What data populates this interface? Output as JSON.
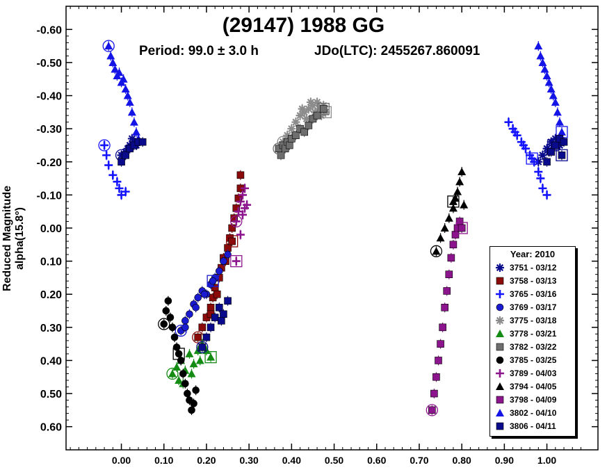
{
  "chart_data": {
    "type": "scatter",
    "title": "(29147) 1988 GG",
    "period_text": "Period: 99.0 ± 3.0 h",
    "epoch_text": "JDo(LTC): 2455267.860091",
    "xlabel": "",
    "ylabel": "Reduced Magnitude alpha(15.8°)",
    "xlim": [
      -0.13,
      1.12
    ],
    "ylim": [
      -0.67,
      0.67
    ],
    "y_inverted": true,
    "x_ticks": [
      "0.00",
      "0.10",
      "0.20",
      "0.30",
      "0.40",
      "0.50",
      "0.60",
      "0.70",
      "0.80",
      "0.90",
      "1.00"
    ],
    "y_ticks": [
      "-0.60",
      "-0.50",
      "-0.40",
      "-0.30",
      "-0.20",
      "-0.10",
      "0.00",
      "0.10",
      "0.20",
      "0.30",
      "0.40",
      "0.50",
      "0.60"
    ],
    "legend_title": "Year: 2010",
    "legend_position": "bottom-right",
    "series": [
      {
        "name": "3751 - 03/12",
        "color": "#0a0a8c",
        "marker": "asterisk",
        "points": [
          [
            0.0,
            -0.22
          ],
          [
            0.01,
            -0.23
          ],
          [
            0.02,
            -0.25
          ],
          [
            0.025,
            -0.27
          ],
          [
            0.03,
            -0.26
          ],
          [
            0.015,
            -0.24
          ],
          [
            0.005,
            -0.22
          ],
          [
            0.035,
            -0.25
          ],
          [
            0.98,
            -0.2
          ],
          [
            0.99,
            -0.22
          ],
          [
            1.0,
            -0.24
          ],
          [
            1.01,
            -0.26
          ],
          [
            1.02,
            -0.27
          ],
          [
            1.03,
            -0.25
          ],
          [
            1.005,
            -0.23
          ],
          [
            1.015,
            -0.25
          ]
        ]
      },
      {
        "name": "3758 - 03/13",
        "color": "#8b0a0a",
        "marker": "square",
        "points": [
          [
            0.18,
            0.33
          ],
          [
            0.19,
            0.3
          ],
          [
            0.2,
            0.27
          ],
          [
            0.21,
            0.24
          ],
          [
            0.215,
            0.21
          ],
          [
            0.22,
            0.18
          ],
          [
            0.23,
            0.15
          ],
          [
            0.235,
            0.12
          ],
          [
            0.24,
            0.09
          ],
          [
            0.25,
            0.06
          ],
          [
            0.255,
            0.03
          ],
          [
            0.26,
            0.0
          ],
          [
            0.265,
            -0.03
          ],
          [
            0.27,
            -0.06
          ],
          [
            0.275,
            -0.09
          ],
          [
            0.28,
            -0.12
          ],
          [
            0.28,
            -0.16
          ],
          [
            0.21,
            0.26
          ],
          [
            0.225,
            0.2
          ],
          [
            0.245,
            0.1
          ],
          [
            0.26,
            0.04
          ]
        ]
      },
      {
        "name": "3765 - 03/16",
        "color": "#1414ff",
        "marker": "plus",
        "points": [
          [
            -0.04,
            -0.25
          ],
          [
            -0.035,
            -0.22
          ],
          [
            -0.03,
            -0.19
          ],
          [
            -0.02,
            -0.16
          ],
          [
            -0.01,
            -0.14
          ],
          [
            -0.005,
            -0.12
          ],
          [
            0.0,
            -0.1
          ],
          [
            0.01,
            -0.11
          ],
          [
            0.91,
            -0.32
          ],
          [
            0.92,
            -0.3
          ],
          [
            0.93,
            -0.28
          ],
          [
            0.94,
            -0.26
          ],
          [
            0.95,
            -0.24
          ],
          [
            0.96,
            -0.22
          ],
          [
            0.97,
            -0.2
          ],
          [
            0.98,
            -0.17
          ],
          [
            0.985,
            -0.15
          ],
          [
            0.99,
            -0.12
          ],
          [
            1.0,
            -0.1
          ],
          [
            0.925,
            -0.29
          ],
          [
            0.945,
            -0.25
          ],
          [
            0.965,
            -0.21
          ]
        ]
      },
      {
        "name": "3769 - 03/17",
        "color": "#1a1ad0",
        "marker": "circle",
        "points": [
          [
            0.14,
            0.31
          ],
          [
            0.15,
            0.28
          ],
          [
            0.16,
            0.26
          ],
          [
            0.17,
            0.23
          ],
          [
            0.18,
            0.21
          ],
          [
            0.19,
            0.19
          ],
          [
            0.2,
            0.2
          ],
          [
            0.21,
            0.17
          ],
          [
            0.22,
            0.15
          ],
          [
            0.23,
            0.13
          ],
          [
            0.24,
            0.1
          ],
          [
            0.25,
            0.08
          ],
          [
            0.15,
            0.3
          ],
          [
            0.175,
            0.24
          ],
          [
            0.195,
            0.2
          ],
          [
            0.215,
            0.16
          ]
        ]
      },
      {
        "name": "3775 - 03/18",
        "color": "#8c8c8c",
        "marker": "asterisk",
        "points": [
          [
            0.38,
            -0.26
          ],
          [
            0.39,
            -0.28
          ],
          [
            0.4,
            -0.3
          ],
          [
            0.41,
            -0.32
          ],
          [
            0.42,
            -0.34
          ],
          [
            0.43,
            -0.35
          ],
          [
            0.44,
            -0.36
          ],
          [
            0.45,
            -0.37
          ],
          [
            0.46,
            -0.38
          ],
          [
            0.465,
            -0.36
          ],
          [
            0.47,
            -0.34
          ],
          [
            0.475,
            -0.37
          ],
          [
            0.435,
            -0.33
          ],
          [
            0.455,
            -0.35
          ],
          [
            0.445,
            -0.38
          ],
          [
            0.425,
            -0.36
          ],
          [
            0.48,
            -0.35
          ]
        ]
      },
      {
        "name": "3778 - 03/21",
        "color": "#148c14",
        "marker": "triangle",
        "points": [
          [
            0.12,
            0.44
          ],
          [
            0.13,
            0.42
          ],
          [
            0.135,
            0.46
          ],
          [
            0.14,
            0.4
          ],
          [
            0.15,
            0.43
          ],
          [
            0.16,
            0.38
          ],
          [
            0.17,
            0.41
          ],
          [
            0.18,
            0.37
          ],
          [
            0.19,
            0.35
          ],
          [
            0.2,
            0.37
          ],
          [
            0.145,
            0.47
          ],
          [
            0.165,
            0.44
          ],
          [
            0.185,
            0.4
          ],
          [
            0.21,
            0.39
          ]
        ]
      },
      {
        "name": "3782 - 03/22",
        "color": "#6e6e6e",
        "marker": "square",
        "points": [
          [
            0.37,
            -0.24
          ],
          [
            0.375,
            -0.22
          ],
          [
            0.38,
            -0.25
          ],
          [
            0.385,
            -0.24
          ],
          [
            0.39,
            -0.26
          ],
          [
            0.395,
            -0.25
          ],
          [
            0.4,
            -0.27
          ],
          [
            0.41,
            -0.28
          ],
          [
            0.42,
            -0.3
          ],
          [
            0.43,
            -0.29
          ],
          [
            0.44,
            -0.31
          ],
          [
            0.45,
            -0.33
          ],
          [
            0.46,
            -0.34
          ],
          [
            0.475,
            -0.36
          ]
        ]
      },
      {
        "name": "3785 - 03/25",
        "color": "#000000",
        "marker": "circle",
        "points": [
          [
            0.1,
            0.29
          ],
          [
            0.105,
            0.25
          ],
          [
            0.11,
            0.22
          ],
          [
            0.115,
            0.27
          ],
          [
            0.12,
            0.3
          ],
          [
            0.125,
            0.33
          ],
          [
            0.13,
            0.36
          ],
          [
            0.14,
            0.4
          ],
          [
            0.145,
            0.44
          ],
          [
            0.15,
            0.47
          ],
          [
            0.155,
            0.5
          ],
          [
            0.16,
            0.52
          ],
          [
            0.165,
            0.55
          ],
          [
            0.17,
            0.53
          ],
          [
            0.175,
            0.49
          ],
          [
            0.135,
            0.38
          ]
        ]
      },
      {
        "name": "3789 - 04/03",
        "color": "#8c148c",
        "marker": "plus",
        "points": [
          [
            0.27,
            -0.02
          ],
          [
            0.275,
            -0.05
          ],
          [
            0.28,
            -0.08
          ],
          [
            0.285,
            -0.1
          ],
          [
            0.29,
            -0.12
          ],
          [
            0.295,
            -0.07
          ],
          [
            0.28,
            0.02
          ],
          [
            0.285,
            -0.04
          ],
          [
            0.29,
            -0.06
          ],
          [
            0.27,
            0.1
          ]
        ]
      },
      {
        "name": "3794 - 04/05",
        "color": "#000000",
        "marker": "triangle",
        "points": [
          [
            0.74,
            0.07
          ],
          [
            0.75,
            0.03
          ],
          [
            0.76,
            0.0
          ],
          [
            0.77,
            -0.03
          ],
          [
            0.78,
            -0.06
          ],
          [
            0.785,
            -0.09
          ],
          [
            0.79,
            -0.11
          ],
          [
            0.795,
            -0.14
          ],
          [
            0.8,
            -0.17
          ],
          [
            0.805,
            -0.07
          ],
          [
            0.78,
            -0.08
          ]
        ]
      },
      {
        "name": "3798 - 04/09",
        "color": "#8c148c",
        "marker": "square",
        "points": [
          [
            0.73,
            0.55
          ],
          [
            0.735,
            0.5
          ],
          [
            0.74,
            0.45
          ],
          [
            0.745,
            0.4
          ],
          [
            0.75,
            0.35
          ],
          [
            0.755,
            0.3
          ],
          [
            0.76,
            0.24
          ],
          [
            0.765,
            0.19
          ],
          [
            0.77,
            0.14
          ],
          [
            0.775,
            0.09
          ],
          [
            0.78,
            0.05
          ],
          [
            0.785,
            0.02
          ],
          [
            0.79,
            0.0
          ],
          [
            0.795,
            -0.02
          ],
          [
            0.8,
            0.0
          ]
        ]
      },
      {
        "name": "3802 - 04/10",
        "color": "#1414e6",
        "marker": "triangle",
        "points": [
          [
            -0.03,
            -0.55
          ],
          [
            -0.025,
            -0.52
          ],
          [
            -0.02,
            -0.5
          ],
          [
            -0.015,
            -0.48
          ],
          [
            -0.01,
            -0.46
          ],
          [
            -0.005,
            -0.47
          ],
          [
            0.0,
            -0.44
          ],
          [
            0.005,
            -0.45
          ],
          [
            0.01,
            -0.42
          ],
          [
            0.015,
            -0.4
          ],
          [
            0.02,
            -0.38
          ],
          [
            0.025,
            -0.35
          ],
          [
            0.03,
            -0.32
          ],
          [
            0.035,
            -0.29
          ],
          [
            0.04,
            -0.27
          ],
          [
            0.98,
            -0.55
          ],
          [
            0.985,
            -0.52
          ],
          [
            0.99,
            -0.5
          ],
          [
            0.995,
            -0.48
          ],
          [
            1.0,
            -0.46
          ],
          [
            1.005,
            -0.44
          ],
          [
            1.01,
            -0.42
          ],
          [
            1.015,
            -0.4
          ],
          [
            1.02,
            -0.38
          ],
          [
            1.025,
            -0.35
          ],
          [
            1.03,
            -0.32
          ],
          [
            1.035,
            -0.29
          ]
        ]
      },
      {
        "name": "3806 - 04/11",
        "color": "#0a0a8c",
        "marker": "square",
        "points": [
          [
            0.19,
            0.36
          ],
          [
            0.2,
            0.33
          ],
          [
            0.21,
            0.3
          ],
          [
            0.22,
            0.27
          ],
          [
            0.23,
            0.24
          ],
          [
            0.24,
            0.26
          ],
          [
            0.235,
            0.28
          ],
          [
            0.25,
            0.22
          ],
          [
            0.0,
            -0.2
          ],
          [
            0.01,
            -0.22
          ],
          [
            0.02,
            -0.24
          ],
          [
            0.03,
            -0.25
          ],
          [
            0.04,
            -0.26
          ],
          [
            0.05,
            -0.26
          ],
          [
            1.0,
            -0.2
          ],
          [
            1.01,
            -0.23
          ],
          [
            1.02,
            -0.25
          ],
          [
            1.03,
            -0.27
          ],
          [
            1.04,
            -0.26
          ],
          [
            1.035,
            -0.22
          ]
        ]
      }
    ]
  }
}
